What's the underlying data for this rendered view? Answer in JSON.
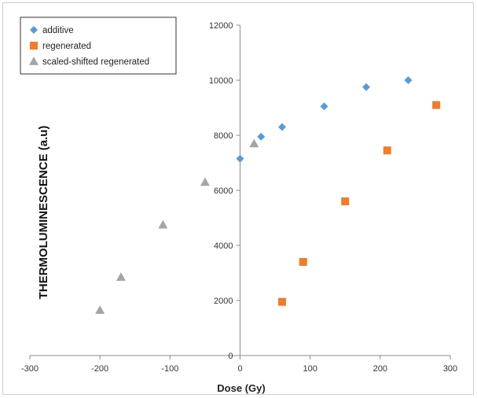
{
  "chart_data": {
    "type": "scatter",
    "title": "",
    "xlabel": "Dose (Gy)",
    "ylabel": "THERMOLUMINESCENCE (a.u)",
    "xlim": [
      -300,
      300
    ],
    "ylim": [
      0,
      12000
    ],
    "x_ticks": [
      -300,
      -200,
      -100,
      0,
      100,
      200,
      300
    ],
    "y_ticks": [
      0,
      2000,
      4000,
      6000,
      8000,
      10000,
      12000
    ],
    "grid": false,
    "legend_position": "top-left",
    "series": [
      {
        "name": "additive",
        "marker": "diamond",
        "color": "#5b9bd5",
        "points": [
          [
            0,
            7150
          ],
          [
            30,
            7950
          ],
          [
            60,
            8300
          ],
          [
            120,
            9050
          ],
          [
            180,
            9750
          ],
          [
            240,
            10000
          ]
        ]
      },
      {
        "name": "regenerated",
        "marker": "square",
        "color": "#ed7d31",
        "points": [
          [
            60,
            1950
          ],
          [
            90,
            3400
          ],
          [
            150,
            5600
          ],
          [
            210,
            7450
          ],
          [
            280,
            9100
          ]
        ]
      },
      {
        "name": "scaled-shifted regenerated",
        "marker": "triangle",
        "color": "#a5a5a5",
        "points": [
          [
            -200,
            1650
          ],
          [
            -170,
            2850
          ],
          [
            -110,
            4750
          ],
          [
            -50,
            6300
          ],
          [
            20,
            7700
          ]
        ]
      }
    ]
  }
}
